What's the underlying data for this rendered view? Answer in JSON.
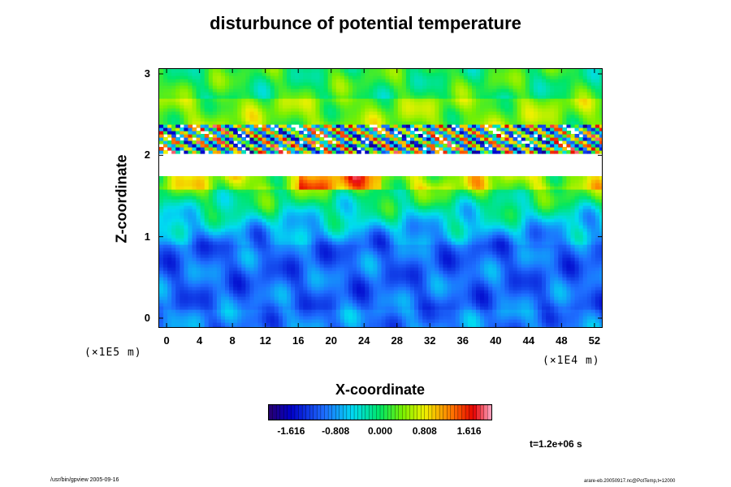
{
  "chart_data": {
    "type": "heatmap",
    "title": "disturbunce of potential temperature",
    "xlabel": "X-coordinate",
    "ylabel": "Z-coordinate",
    "x_unit": "(×1E4 m)",
    "y_unit": "(×1E5 m)",
    "x_ticks": [
      "0",
      "4",
      "8",
      "12",
      "16",
      "20",
      "24",
      "28",
      "32",
      "36",
      "40",
      "44",
      "48",
      "52"
    ],
    "y_ticks": [
      "0",
      "1",
      "2",
      "3"
    ],
    "xlim": [
      -1,
      53
    ],
    "ylim": [
      -0.12,
      3.07
    ],
    "colorbar": {
      "min": -2.02,
      "max": 2.02,
      "tick_labels": [
        "-1.616",
        "-0.808",
        "0.000",
        "0.808",
        "1.616"
      ],
      "tick_values": [
        -1.616,
        -0.808,
        0.0,
        0.808,
        1.616
      ],
      "colormap": "rainbow (dark blue → blue → cyan → green → yellow → red → pink)"
    },
    "field_description": [
      {
        "z_range": [
          0,
          0.9
        ],
        "value_approx": -1.0,
        "note": "blue lower layer with eddies"
      },
      {
        "z_range": [
          0.9,
          1.6
        ],
        "value_approx": -0.3,
        "note": "cyan to green transition layer"
      },
      {
        "z_range": [
          1.6,
          1.75
        ],
        "value_approx": 0.8,
        "note": "yellow/orange band below gap"
      },
      {
        "z_range": [
          1.75,
          2.05
        ],
        "value_approx": null,
        "note": "blank (out of colorbar range)"
      },
      {
        "z_range": [
          2.05,
          2.4
        ],
        "value_approx": 1.2,
        "note": "mixed red/white/blue streaks"
      },
      {
        "z_range": [
          2.4,
          3.05
        ],
        "value_approx": 0.3,
        "note": "green upper layer"
      }
    ]
  },
  "time_label": "t=1.2e+06 s",
  "footer_left": "/usr/bin/gpview 2005-09-16",
  "footer_right": "arare-eb.20050917.nc@PotTemp,t=12000"
}
